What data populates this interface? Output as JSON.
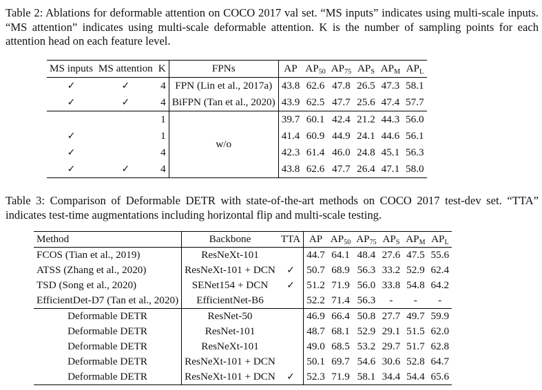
{
  "table2": {
    "caption": "Table 2: Ablations for deformable attention on COCO 2017 val set. “MS inputs” indicates using multi-scale inputs. “MS attention” indicates using multi-scale deformable attention. K is the number of sampling points for each attention head on each feature level.",
    "headers": {
      "ms_inputs": "MS inputs",
      "ms_attention": "MS attention",
      "k": "K",
      "fpns": "FPNs",
      "ap": "AP",
      "ap50": "AP",
      "ap50_sub": "50",
      "ap75": "AP",
      "ap75_sub": "75",
      "aps": "AP",
      "aps_sub": "S",
      "apm": "AP",
      "apm_sub": "M",
      "apl": "AP",
      "apl_sub": "L"
    },
    "checkmark": "✓",
    "fpn_merged": "w/o",
    "rows": [
      {
        "ms_inputs": "✓",
        "ms_attention": "✓",
        "k": "4",
        "fpn": "FPN (Lin et al., 2017a)",
        "ap": "43.8",
        "ap50": "62.6",
        "ap75": "47.8",
        "aps": "26.5",
        "apm": "47.3",
        "apl": "58.1"
      },
      {
        "ms_inputs": "✓",
        "ms_attention": "✓",
        "k": "4",
        "fpn": "BiFPN (Tan et al., 2020)",
        "ap": "43.9",
        "ap50": "62.5",
        "ap75": "47.7",
        "aps": "25.6",
        "apm": "47.4",
        "apl": "57.7"
      },
      {
        "ms_inputs": "",
        "ms_attention": "",
        "k": "1",
        "ap": "39.7",
        "ap50": "60.1",
        "ap75": "42.4",
        "aps": "21.2",
        "apm": "44.3",
        "apl": "56.0"
      },
      {
        "ms_inputs": "✓",
        "ms_attention": "",
        "k": "1",
        "ap": "41.4",
        "ap50": "60.9",
        "ap75": "44.9",
        "aps": "24.1",
        "apm": "44.6",
        "apl": "56.1"
      },
      {
        "ms_inputs": "✓",
        "ms_attention": "",
        "k": "4",
        "ap": "42.3",
        "ap50": "61.4",
        "ap75": "46.0",
        "aps": "24.8",
        "apm": "45.1",
        "apl": "56.3"
      },
      {
        "ms_inputs": "✓",
        "ms_attention": "✓",
        "k": "4",
        "ap": "43.8",
        "ap50": "62.6",
        "ap75": "47.7",
        "aps": "26.4",
        "apm": "47.1",
        "apl": "58.0"
      }
    ]
  },
  "table3": {
    "caption": "Table 3: Comparison of Deformable DETR with state-of-the-art methods on COCO 2017 test-dev set. “TTA” indicates test-time augmentations including horizontal flip and multi-scale testing.",
    "headers": {
      "method": "Method",
      "backbone": "Backbone",
      "tta": "TTA",
      "ap": "AP",
      "ap50": "AP",
      "ap50_sub": "50",
      "ap75": "AP",
      "ap75_sub": "75",
      "aps": "AP",
      "aps_sub": "S",
      "apm": "AP",
      "apm_sub": "M",
      "apl": "AP",
      "apl_sub": "L"
    },
    "rows": [
      {
        "method": "FCOS (Tian et al., 2019)",
        "backbone": "ResNeXt-101",
        "tta": "",
        "ap": "44.7",
        "ap50": "64.1",
        "ap75": "48.4",
        "aps": "27.6",
        "apm": "47.5",
        "apl": "55.6"
      },
      {
        "method": "ATSS (Zhang et al., 2020)",
        "backbone": "ResNeXt-101 + DCN",
        "tta": "✓",
        "ap": "50.7",
        "ap50": "68.9",
        "ap75": "56.3",
        "aps": "33.2",
        "apm": "52.9",
        "apl": "62.4"
      },
      {
        "method": "TSD (Song et al., 2020)",
        "backbone": "SENet154 + DCN",
        "tta": "✓",
        "ap": "51.2",
        "ap50": "71.9",
        "ap75": "56.0",
        "aps": "33.8",
        "apm": "54.8",
        "apl": "64.2"
      },
      {
        "method": "EfficientDet-D7 (Tan et al., 2020)",
        "backbone": "EfficientNet-B6",
        "tta": "",
        "ap": "52.2",
        "ap50": "71.4",
        "ap75": "56.3",
        "aps": "-",
        "apm": "-",
        "apl": "-"
      },
      {
        "method": "Deformable DETR",
        "backbone": "ResNet-50",
        "tta": "",
        "ap": "46.9",
        "ap50": "66.4",
        "ap75": "50.8",
        "aps": "27.7",
        "apm": "49.7",
        "apl": "59.9"
      },
      {
        "method": "Deformable DETR",
        "backbone": "ResNet-101",
        "tta": "",
        "ap": "48.7",
        "ap50": "68.1",
        "ap75": "52.9",
        "aps": "29.1",
        "apm": "51.5",
        "apl": "62.0"
      },
      {
        "method": "Deformable DETR",
        "backbone": "ResNeXt-101",
        "tta": "",
        "ap": "49.0",
        "ap50": "68.5",
        "ap75": "53.2",
        "aps": "29.7",
        "apm": "51.7",
        "apl": "62.8"
      },
      {
        "method": "Deformable DETR",
        "backbone": "ResNeXt-101 + DCN",
        "tta": "",
        "ap": "50.1",
        "ap50": "69.7",
        "ap75": "54.6",
        "aps": "30.6",
        "apm": "52.8",
        "apl": "64.7"
      },
      {
        "method": "Deformable DETR",
        "backbone": "ResNeXt-101 + DCN",
        "tta": "✓",
        "ap": "52.3",
        "ap50": "71.9",
        "ap75": "58.1",
        "aps": "34.4",
        "apm": "54.4",
        "apl": "65.6"
      }
    ]
  }
}
